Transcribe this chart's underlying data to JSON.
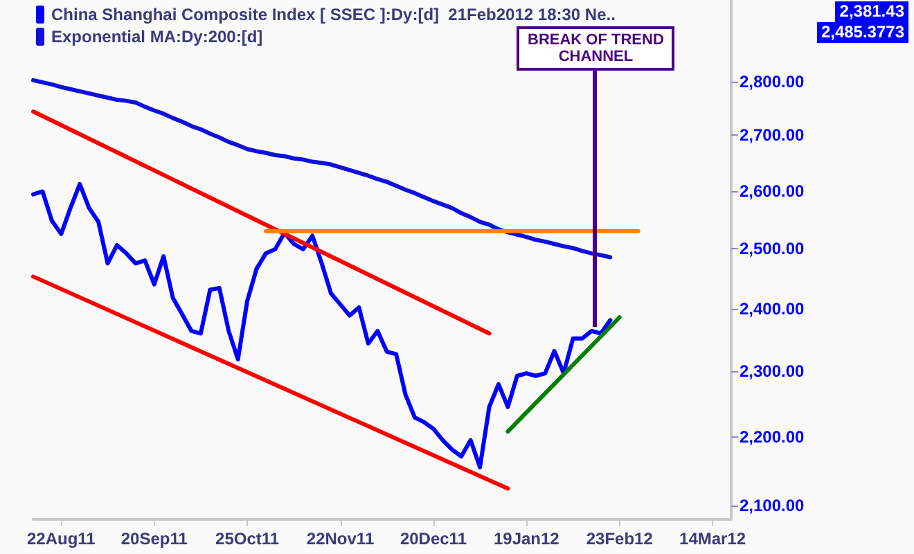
{
  "chart_data": {
    "type": "line",
    "log": true,
    "grid": false,
    "legend": "top left",
    "marker": "none",
    "line_style": "solid",
    "ylim": [
      2080,
      2960
    ],
    "yticks": [
      {
        "value": 2100,
        "label": "2,100.00"
      },
      {
        "value": 2200,
        "label": "2,200.00"
      },
      {
        "value": 2300,
        "label": "2,300.00"
      },
      {
        "value": 2400,
        "label": "2,400.00"
      },
      {
        "value": 2500,
        "label": "2,500.00"
      },
      {
        "value": 2600,
        "label": "2,600.00"
      },
      {
        "value": 2700,
        "label": "2,700.00"
      },
      {
        "value": 2800,
        "label": "2,800.00"
      }
    ],
    "categories": [
      null,
      null,
      null,
      "22Aug11",
      null,
      null,
      null,
      null,
      null,
      null,
      null,
      null,
      null,
      "20Sep11",
      null,
      null,
      null,
      null,
      null,
      null,
      null,
      null,
      null,
      "25Oct11",
      null,
      null,
      null,
      null,
      null,
      null,
      null,
      null,
      null,
      "22Nov11",
      null,
      null,
      null,
      null,
      null,
      null,
      null,
      null,
      null,
      "20Dec11",
      null,
      null,
      null,
      null,
      null,
      null,
      null,
      null,
      null,
      "19Jan12",
      null,
      null,
      null,
      null,
      null,
      null,
      null,
      null,
      null,
      "23Feb12",
      null,
      null,
      null,
      null,
      null,
      null,
      null,
      null,
      null,
      "14Mar12",
      null,
      null
    ],
    "series": [
      {
        "name": "China Shanghai Composite Index [ SSEC ]:Dy:[d]  21Feb2012 18:30 Ne..",
        "color": "#0000ff",
        "values": [
          2594,
          2599,
          2548,
          2525,
          2570,
          2612,
          2570,
          2546,
          2475,
          2506,
          2492,
          2475,
          2480,
          2440,
          2487,
          2418,
          2391,
          2364,
          2360,
          2431,
          2434,
          2364,
          2319,
          2413,
          2466,
          2492,
          2499,
          2527,
          2508,
          2499,
          2522,
          2475,
          2425,
          2407,
          2389,
          2402,
          2344,
          2364,
          2331,
          2327,
          2264,
          2229,
          2222,
          2212,
          2195,
          2181,
          2171,
          2195,
          2155,
          2245,
          2280,
          2245,
          2293,
          2297,
          2293,
          2297,
          2332,
          2297,
          2352,
          2352,
          2364,
          2360,
          2381.43,
          null,
          null,
          null,
          null,
          null,
          null,
          null,
          null,
          null,
          null,
          null,
          null,
          null
        ]
      },
      {
        "name": "Exponential MA:Dy:200:[d]",
        "color": "#1010dd",
        "values": [
          2803,
          2799,
          2795,
          2790,
          2786,
          2782,
          2778,
          2774,
          2770,
          2766,
          2764,
          2761,
          2753,
          2746,
          2740,
          2732,
          2725,
          2717,
          2711,
          2703,
          2696,
          2688,
          2682,
          2675,
          2671,
          2668,
          2664,
          2662,
          2658,
          2656,
          2652,
          2650,
          2647,
          2642,
          2637,
          2632,
          2627,
          2621,
          2616,
          2609,
          2602,
          2596,
          2589,
          2582,
          2576,
          2570,
          2561,
          2554,
          2546,
          2541,
          2533,
          2528,
          2524,
          2520,
          2515,
          2512,
          2508,
          2504,
          2501,
          2496,
          2492,
          2489,
          2485.3773,
          null,
          null,
          null,
          null,
          null,
          null,
          null,
          null,
          null,
          null,
          null,
          null,
          null
        ]
      },
      {
        "type": "line",
        "color": "#ff0000",
        "values": [
          2744,
          null,
          null,
          null,
          null,
          null,
          null,
          null,
          null,
          null,
          null,
          null,
          null,
          null,
          null,
          null,
          null,
          null,
          null,
          null,
          null,
          null,
          null,
          null,
          null,
          null,
          null,
          null,
          null,
          null,
          null,
          null,
          null,
          null,
          null,
          null,
          null,
          null,
          null,
          null,
          null,
          null,
          null,
          null,
          null,
          null,
          null,
          null,
          null,
          2360,
          null,
          null,
          null,
          null,
          null,
          null,
          null,
          null,
          null,
          null,
          null,
          null,
          null,
          null,
          null,
          null,
          null,
          null,
          null,
          null,
          null,
          null,
          null,
          null,
          null,
          null
        ]
      },
      {
        "type": "line",
        "color": "#ff0000",
        "values": [
          2453,
          null,
          null,
          null,
          null,
          null,
          null,
          null,
          null,
          null,
          null,
          null,
          null,
          null,
          null,
          null,
          null,
          null,
          null,
          null,
          null,
          null,
          null,
          null,
          null,
          null,
          null,
          null,
          null,
          null,
          null,
          null,
          null,
          null,
          null,
          null,
          null,
          null,
          null,
          null,
          null,
          null,
          null,
          null,
          null,
          null,
          null,
          null,
          null,
          null,
          null,
          2124,
          null,
          null,
          null,
          null,
          null,
          null,
          null,
          null,
          null,
          null,
          null,
          null,
          null,
          null,
          null,
          null,
          null,
          null,
          null,
          null,
          null,
          null,
          null,
          null
        ]
      },
      {
        "type": "line",
        "color": "#ff8000",
        "values": [
          null,
          null,
          null,
          null,
          null,
          null,
          null,
          null,
          null,
          null,
          null,
          null,
          null,
          null,
          null,
          null,
          null,
          null,
          null,
          null,
          null,
          null,
          null,
          null,
          null,
          2530,
          null,
          null,
          null,
          null,
          null,
          null,
          null,
          null,
          null,
          null,
          null,
          null,
          null,
          null,
          null,
          null,
          null,
          null,
          null,
          null,
          null,
          null,
          null,
          null,
          null,
          null,
          null,
          null,
          null,
          null,
          null,
          null,
          null,
          null,
          null,
          null,
          null,
          null,
          null,
          2530,
          null,
          null,
          null,
          null,
          null,
          null,
          null,
          null,
          null,
          null
        ]
      },
      {
        "type": "line",
        "color": "#008000",
        "values": [
          null,
          null,
          null,
          null,
          null,
          null,
          null,
          null,
          null,
          null,
          null,
          null,
          null,
          null,
          null,
          null,
          null,
          null,
          null,
          null,
          null,
          null,
          null,
          null,
          null,
          null,
          null,
          null,
          null,
          null,
          null,
          null,
          null,
          null,
          null,
          null,
          null,
          null,
          null,
          null,
          null,
          null,
          null,
          null,
          null,
          null,
          null,
          null,
          null,
          null,
          null,
          2208,
          null,
          null,
          null,
          null,
          null,
          null,
          null,
          null,
          null,
          null,
          null,
          2386,
          null,
          null,
          null,
          null,
          null,
          null,
          null,
          null,
          null,
          null,
          null,
          null
        ]
      }
    ],
    "annotations": [
      "2,381.43",
      "2,485.3773",
      {
        "text": "BREAK OF TREND CHANNEL",
        "y": 2370
      }
    ]
  }
}
